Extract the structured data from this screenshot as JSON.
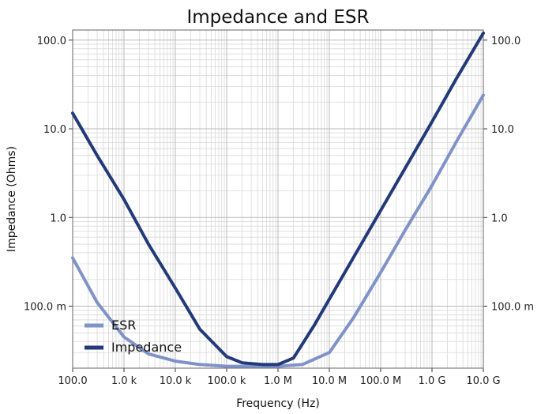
{
  "chart_data": {
    "type": "line",
    "title": "Impedance and ESR",
    "xlabel": "Frequency (Hz)",
    "ylabel": "Impedance (Ohms)",
    "xscale": "log",
    "yscale": "log",
    "xlim": [
      100,
      10000000000
    ],
    "ylim": [
      0.02,
      130
    ],
    "grid": true,
    "legend_position": "bottom-left",
    "x_ticks": [
      {
        "value": 100,
        "label": "100.0"
      },
      {
        "value": 1000,
        "label": "1.0 k"
      },
      {
        "value": 10000,
        "label": "10.0 k"
      },
      {
        "value": 100000,
        "label": "100.0 k"
      },
      {
        "value": 1000000,
        "label": "1.0 M"
      },
      {
        "value": 10000000,
        "label": "10.0 M"
      },
      {
        "value": 100000000,
        "label": "100.0 M"
      },
      {
        "value": 1000000000,
        "label": "1.0 G"
      },
      {
        "value": 10000000000,
        "label": "10.0 G"
      }
    ],
    "y_ticks": [
      {
        "value": 0.1,
        "label": "100.0 m"
      },
      {
        "value": 1,
        "label": "1.0"
      },
      {
        "value": 10,
        "label": "10.0"
      },
      {
        "value": 100,
        "label": "100.0"
      }
    ],
    "series": [
      {
        "name": "ESR",
        "color": "#7f93c8",
        "x": [
          100,
          300,
          1000,
          3000,
          10000,
          30000,
          100000,
          300000,
          1000000,
          3000000,
          10000000,
          30000000,
          100000000,
          300000000,
          1000000000,
          3000000000,
          10000000000
        ],
        "y": [
          0.35,
          0.11,
          0.045,
          0.029,
          0.024,
          0.022,
          0.021,
          0.021,
          0.021,
          0.022,
          0.03,
          0.075,
          0.24,
          0.72,
          2.3,
          7.2,
          24
        ]
      },
      {
        "name": "Impedance",
        "color": "#233a7a",
        "x": [
          100,
          300,
          1000,
          3000,
          10000,
          30000,
          100000,
          200000,
          500000,
          1000000,
          2000000,
          5000000,
          10000000,
          30000000,
          100000000,
          300000000,
          1000000000,
          3000000000,
          10000000000
        ],
        "y": [
          15,
          5,
          1.6,
          0.5,
          0.16,
          0.055,
          0.027,
          0.023,
          0.022,
          0.022,
          0.026,
          0.06,
          0.12,
          0.36,
          1.2,
          3.6,
          12,
          37,
          120
        ]
      }
    ]
  }
}
